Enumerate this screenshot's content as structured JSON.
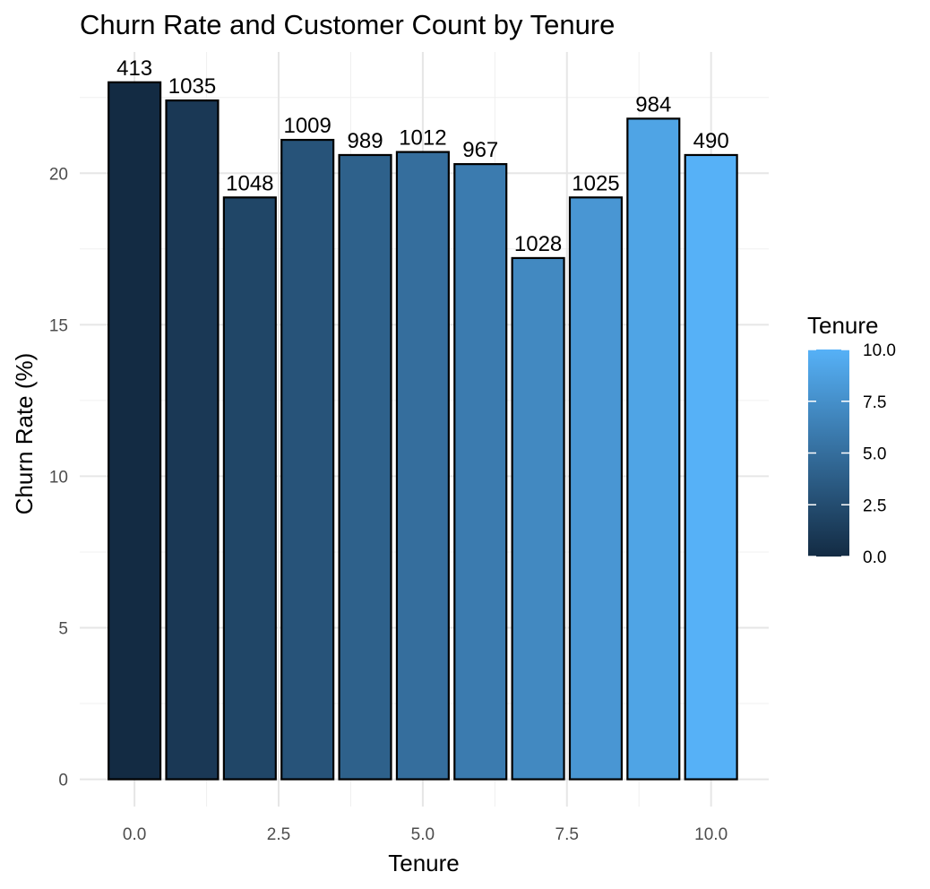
{
  "chart_data": {
    "type": "bar",
    "title": "Churn Rate and Customer Count by Tenure",
    "xlabel": "Tenure",
    "ylabel": "Churn Rate (%)",
    "x": [
      0,
      1,
      2,
      3,
      4,
      5,
      6,
      7,
      8,
      9,
      10
    ],
    "values": [
      23.0,
      22.4,
      19.2,
      21.1,
      20.6,
      20.7,
      20.3,
      17.2,
      19.2,
      21.8,
      20.6
    ],
    "bar_labels": [
      "413",
      "1035",
      "1048",
      "1009",
      "989",
      "1012",
      "967",
      "1028",
      "1025",
      "984",
      "490"
    ],
    "xlim": [
      -0.95,
      11.0
    ],
    "ylim": [
      -0.9,
      24.0
    ],
    "x_ticks": [
      0,
      2.5,
      5,
      7.5,
      10
    ],
    "x_tick_labels": [
      "0.0",
      "2.5",
      "5.0",
      "7.5",
      "10.0"
    ],
    "y_ticks": [
      0,
      5,
      10,
      15,
      20
    ],
    "y_tick_labels": [
      "0",
      "5",
      "10",
      "15",
      "20"
    ],
    "grid": true,
    "legend": {
      "title": "Tenure",
      "placement": "right",
      "type": "colorbar",
      "range": [
        0,
        10
      ],
      "ticks": [
        0,
        2.5,
        5,
        7.5,
        10
      ],
      "tick_labels": [
        "0.0",
        "2.5",
        "5.0",
        "7.5",
        "10.0"
      ],
      "color_low": "#132b43",
      "color_high": "#56b1f7"
    }
  }
}
